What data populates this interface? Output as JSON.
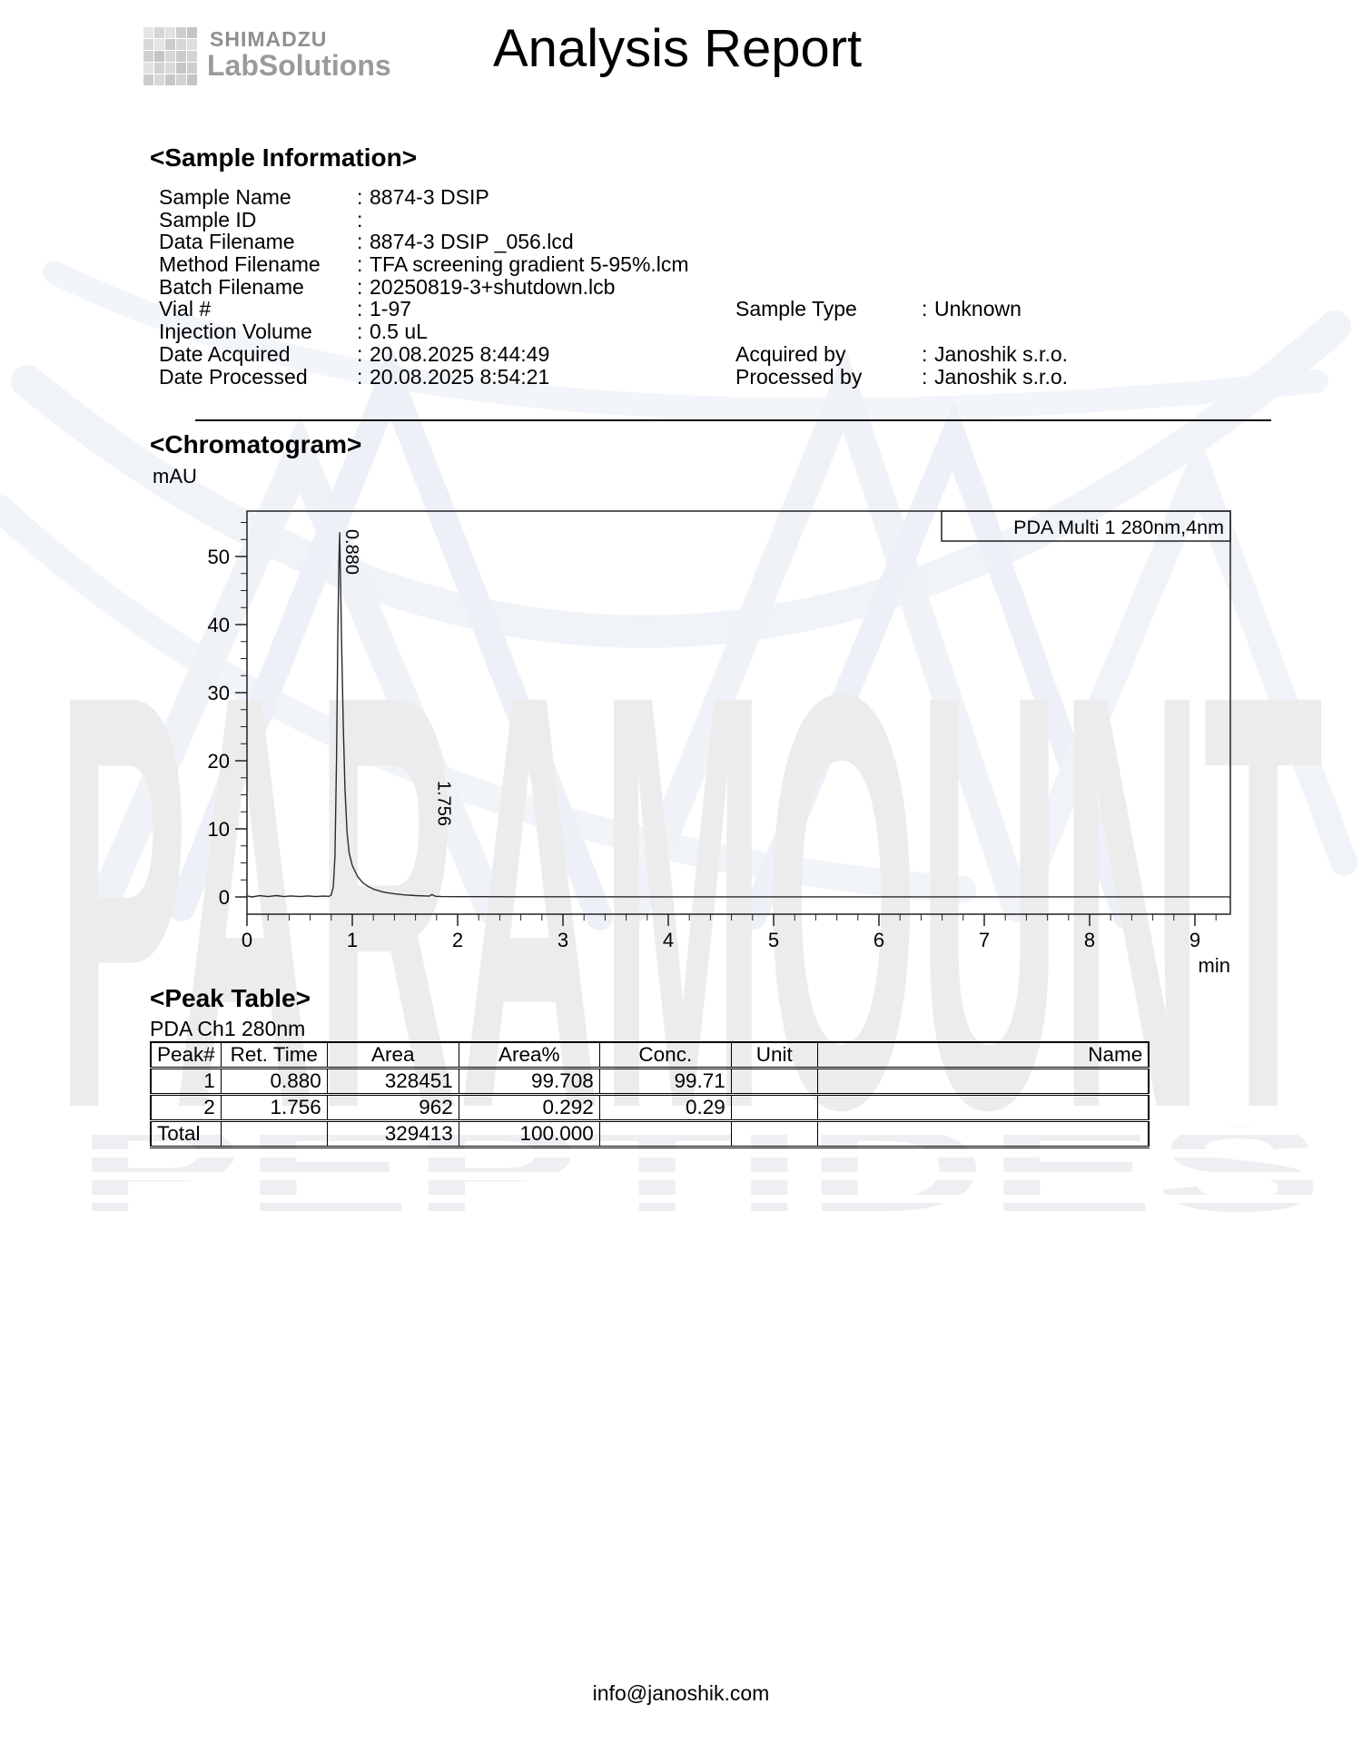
{
  "header": {
    "brand_icon": "grid-icon",
    "brand_name": "SHIMADZU",
    "brand_product": "LabSolutions",
    "title": "Analysis Report"
  },
  "sample_information": {
    "heading": "<Sample Information>",
    "left_fields": [
      {
        "label": "Sample Name",
        "value": "8874-3 DSIP"
      },
      {
        "label": "Sample ID",
        "value": ""
      },
      {
        "label": "Data Filename",
        "value": "8874-3 DSIP _056.lcd"
      },
      {
        "label": "Method Filename",
        "value": "TFA screening gradient 5-95%.lcm"
      },
      {
        "label": "Batch Filename",
        "value": "20250819-3+shutdown.lcb"
      },
      {
        "label": "Vial #",
        "value": "1-97"
      },
      {
        "label": "Injection Volume",
        "value": "0.5 uL"
      },
      {
        "label": "Date Acquired",
        "value": "20.08.2025 8:44:49"
      },
      {
        "label": "Date Processed",
        "value": "20.08.2025 8:54:21"
      }
    ],
    "right_fields": [
      {
        "label": "Sample Type",
        "value": "Unknown"
      },
      {
        "label": "Acquired by",
        "value": "Janoshik s.r.o."
      },
      {
        "label": "Processed by",
        "value": "Janoshik s.r.o."
      }
    ]
  },
  "chromatogram": {
    "heading": "<Chromatogram>",
    "y_axis_unit": "mAU",
    "x_axis_unit": "min",
    "detector_label": "PDA Multi 1 280nm,4nm"
  },
  "chart_data": {
    "type": "line",
    "title": "Chromatogram",
    "xlabel": "min",
    "ylabel": "mAU",
    "x_range": [
      0,
      9.34
    ],
    "y_range": [
      -2.5,
      56.7
    ],
    "x_major_ticks": [
      0,
      1,
      2,
      3,
      4,
      5,
      6,
      7,
      8,
      9
    ],
    "x_minor_step": 0.2,
    "y_major_ticks": [
      0,
      10,
      20,
      30,
      40,
      50
    ],
    "y_minor_step": 2.5,
    "legend": [
      "PDA Multi 1 280nm,4nm"
    ],
    "legend_position": "top-right-inside",
    "grid": false,
    "peaks": [
      {
        "peak": 1,
        "ret_time": "0.880",
        "height_mau": 53.5,
        "area": 328451,
        "area_pct": 99.708,
        "conc": 99.71
      },
      {
        "peak": 2,
        "ret_time": "1.756",
        "height_mau": 0.35,
        "area": 962,
        "area_pct": 0.292,
        "conc": 0.29
      }
    ],
    "trace": [
      [
        0,
        0.15
      ],
      [
        0.05,
        0
      ],
      [
        0.12,
        0.18
      ],
      [
        0.2,
        0.05
      ],
      [
        0.28,
        0.2
      ],
      [
        0.35,
        0.05
      ],
      [
        0.42,
        0.15
      ],
      [
        0.5,
        0.05
      ],
      [
        0.58,
        0.15
      ],
      [
        0.65,
        0.05
      ],
      [
        0.72,
        0.12
      ],
      [
        0.78,
        0.1
      ],
      [
        0.8,
        0.3
      ],
      [
        0.82,
        1.5
      ],
      [
        0.835,
        6
      ],
      [
        0.85,
        20
      ],
      [
        0.862,
        38
      ],
      [
        0.872,
        49
      ],
      [
        0.88,
        53.5
      ],
      [
        0.888,
        47
      ],
      [
        0.9,
        36
      ],
      [
        0.915,
        25
      ],
      [
        0.93,
        16
      ],
      [
        0.95,
        9.5
      ],
      [
        0.97,
        6.5
      ],
      [
        1.0,
        4.6
      ],
      [
        1.05,
        3.0
      ],
      [
        1.1,
        2.1
      ],
      [
        1.15,
        1.55
      ],
      [
        1.2,
        1.15
      ],
      [
        1.3,
        0.7
      ],
      [
        1.4,
        0.45
      ],
      [
        1.5,
        0.3
      ],
      [
        1.6,
        0.2
      ],
      [
        1.7,
        0.14
      ],
      [
        1.73,
        0.12
      ],
      [
        1.756,
        0.35
      ],
      [
        1.79,
        0.1
      ],
      [
        1.85,
        0.06
      ],
      [
        2.0,
        0.04
      ],
      [
        2.2,
        0.04
      ],
      [
        2.5,
        0.03
      ],
      [
        3,
        0.03
      ],
      [
        4,
        0.02
      ],
      [
        5,
        0.02
      ],
      [
        6,
        0.02
      ],
      [
        7,
        0.02
      ],
      [
        8,
        0.02
      ],
      [
        9,
        0.02
      ],
      [
        9.34,
        0.02
      ]
    ]
  },
  "peak_table": {
    "heading": "<Peak Table>",
    "channel": "PDA Ch1 280nm",
    "columns": [
      "Peak#",
      "Ret. Time",
      "Area",
      "Area%",
      "Conc.",
      "Unit",
      "Name"
    ],
    "rows": [
      [
        "1",
        "0.880",
        "328451",
        "99.708",
        "99.71",
        "",
        ""
      ],
      [
        "2",
        "1.756",
        "962",
        "0.292",
        "0.29",
        "",
        ""
      ]
    ],
    "total_row": [
      "Total",
      "",
      "329413",
      "100.000",
      "",
      "",
      ""
    ]
  },
  "watermark": {
    "line1": "PARAMOUNT",
    "line2": "PEPTIDES"
  },
  "footer": {
    "email": "info@janoshik.com"
  },
  "colors": {
    "text": "#000000",
    "logo_gray": "#9a9a9a",
    "frame": "#222222",
    "trace": "#2a2a2a",
    "watermark_text": "#ececec",
    "watermark_stripe": "#edeff2",
    "watermark_helix": "#eef2f8"
  }
}
